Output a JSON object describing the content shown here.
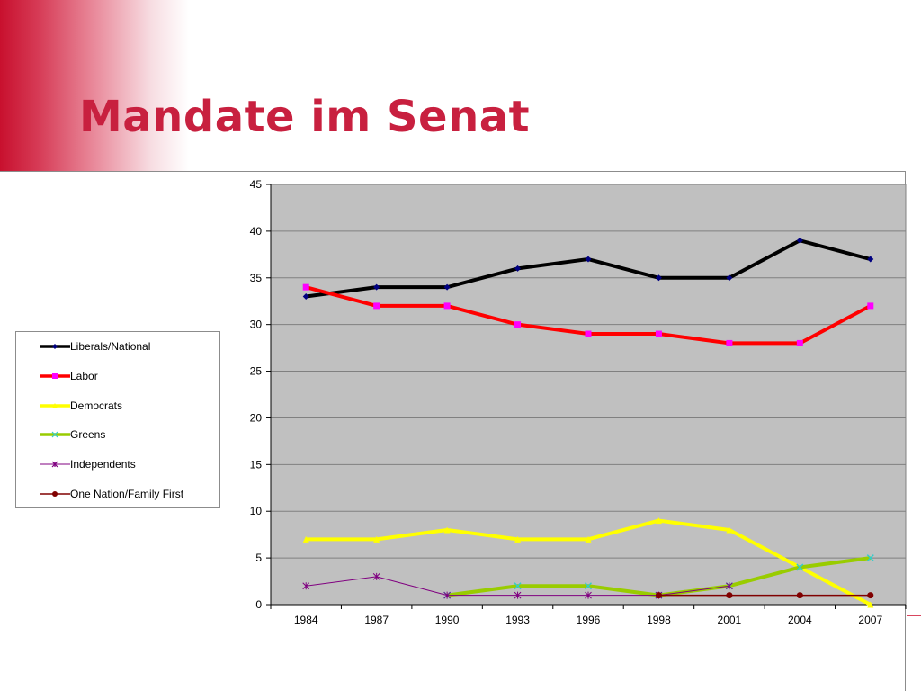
{
  "slide": {
    "title": "Mandate im Senat"
  },
  "colors": {
    "title": "#c8203f",
    "plot_background": "#c0c0c0",
    "gridline": "#808080"
  },
  "chart_data": {
    "type": "line",
    "categories": [
      "1984",
      "1987",
      "1990",
      "1993",
      "1996",
      "1998",
      "2001",
      "2004",
      "2007"
    ],
    "ylim": [
      0,
      45
    ],
    "yticks": [
      0,
      5,
      10,
      15,
      20,
      25,
      30,
      35,
      40,
      45
    ],
    "grid": true,
    "legend_position": "left",
    "series": [
      {
        "name": "Liberals/National",
        "color": "#000000",
        "marker": "diamond",
        "marker_color": "#000080",
        "values": [
          33,
          34,
          34,
          36,
          37,
          35,
          35,
          39,
          37
        ]
      },
      {
        "name": "Labor",
        "color": "#ff0000",
        "marker": "square",
        "marker_color": "#ff00ff",
        "values": [
          34,
          32,
          32,
          30,
          29,
          29,
          28,
          28,
          32
        ]
      },
      {
        "name": "Democrats",
        "color": "#ffff00",
        "marker": "triangle",
        "marker_color": "#ffff00",
        "values": [
          7,
          7,
          8,
          7,
          7,
          9,
          8,
          4,
          0
        ]
      },
      {
        "name": "Greens",
        "color": "#99cc00",
        "marker": "x",
        "marker_color": "#33cccc",
        "values": [
          null,
          null,
          1,
          2,
          2,
          1,
          2,
          4,
          5
        ]
      },
      {
        "name": "Independents",
        "color": "#800080",
        "marker": "asterisk",
        "marker_color": "#800080",
        "values": [
          2,
          3,
          1,
          1,
          1,
          1,
          2,
          null,
          null
        ]
      },
      {
        "name": "One Nation/Family First",
        "color": "#800000",
        "marker": "circle",
        "marker_color": "#800000",
        "values": [
          null,
          null,
          null,
          null,
          null,
          1,
          1,
          1,
          1
        ]
      }
    ]
  }
}
